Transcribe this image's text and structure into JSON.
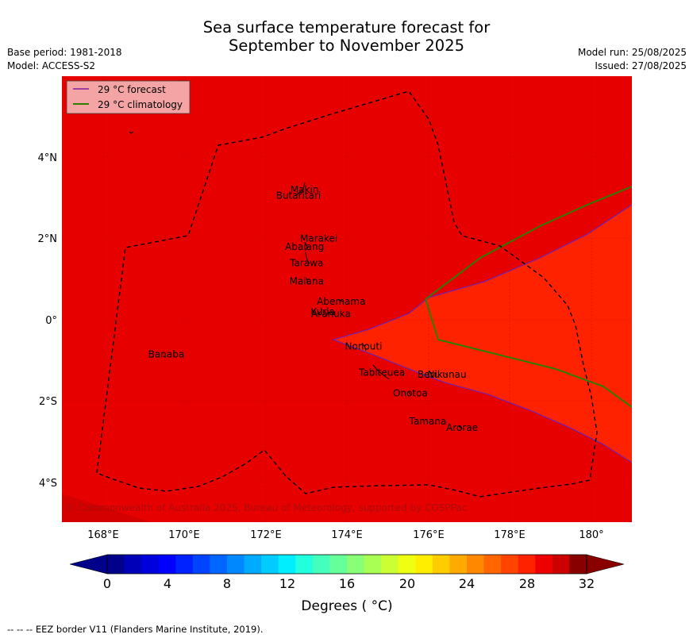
{
  "title_line1": "Sea surface temperature forecast for",
  "title_line2": "September to November 2025",
  "meta_left": [
    "Base period: 1981-2018",
    "Model: ACCESS-S2"
  ],
  "meta_right": [
    "Model run: 25/08/2025",
    "Issued: 27/08/2025"
  ],
  "legend": [
    {
      "label": "29 °C  forecast",
      "color": "#7b1fa2"
    },
    {
      "label": "29 °C  climatology",
      "color": "#2e7d00"
    }
  ],
  "lon_ticks": [
    "168°E",
    "170°E",
    "172°E",
    "174°E",
    "176°E",
    "178°E",
    "180°"
  ],
  "lat_ticks": [
    "4°N",
    "2°N",
    "0°",
    "2°S",
    "4°S"
  ],
  "islands": [
    {
      "name": "Makin",
      "lon": 172.95,
      "lat": 3.2
    },
    {
      "name": "Butaritari",
      "lon": 172.8,
      "lat": 3.05
    },
    {
      "name": "Marakei",
      "lon": 173.3,
      "lat": 2.0
    },
    {
      "name": "Abaiang",
      "lon": 172.95,
      "lat": 1.8
    },
    {
      "name": "Tarawa",
      "lon": 173.0,
      "lat": 1.4
    },
    {
      "name": "Maiana",
      "lon": 173.0,
      "lat": 0.95
    },
    {
      "name": "Abemama",
      "lon": 173.85,
      "lat": 0.45
    },
    {
      "name": "Kuria",
      "lon": 173.4,
      "lat": 0.2
    },
    {
      "name": "Aranuka",
      "lon": 173.6,
      "lat": 0.15
    },
    {
      "name": "Banaba",
      "lon": 169.55,
      "lat": -0.85
    },
    {
      "name": "Nonouti",
      "lon": 174.4,
      "lat": -0.65
    },
    {
      "name": "Tabiteuea",
      "lon": 174.85,
      "lat": -1.3
    },
    {
      "name": "Beru",
      "lon": 176.0,
      "lat": -1.35
    },
    {
      "name": "Nikunau",
      "lon": 176.45,
      "lat": -1.35
    },
    {
      "name": "Onotoa",
      "lon": 175.55,
      "lat": -1.8
    },
    {
      "name": "Tamana",
      "lon": 175.98,
      "lat": -2.5
    },
    {
      "name": "Arorae",
      "lon": 176.82,
      "lat": -2.65
    }
  ],
  "copyright": "© Commonwealth of Australia 2025, Bureau of Meteorology, supported by COSPPac",
  "colorbar": {
    "ticks": [
      "0",
      "4",
      "8",
      "12",
      "16",
      "20",
      "24",
      "28",
      "32"
    ],
    "label": "Degrees ( °C)",
    "colors": [
      "#00008b",
      "#0000b8",
      "#0000dd",
      "#0000ff",
      "#0022ff",
      "#0044ff",
      "#0066ff",
      "#0088ff",
      "#00aaff",
      "#00ccff",
      "#00eeff",
      "#22ffdd",
      "#44ffbb",
      "#66ff99",
      "#88ff77",
      "#aaff55",
      "#ccff33",
      "#eeff11",
      "#ffee00",
      "#ffcc00",
      "#ffaa00",
      "#ff8800",
      "#ff6600",
      "#ff4400",
      "#ff2200",
      "#ee0000",
      "#cc0000",
      "#880000"
    ]
  },
  "footer": "--  --  -- EEZ border V11 (Flanders Marine Institute, 2019)."
}
